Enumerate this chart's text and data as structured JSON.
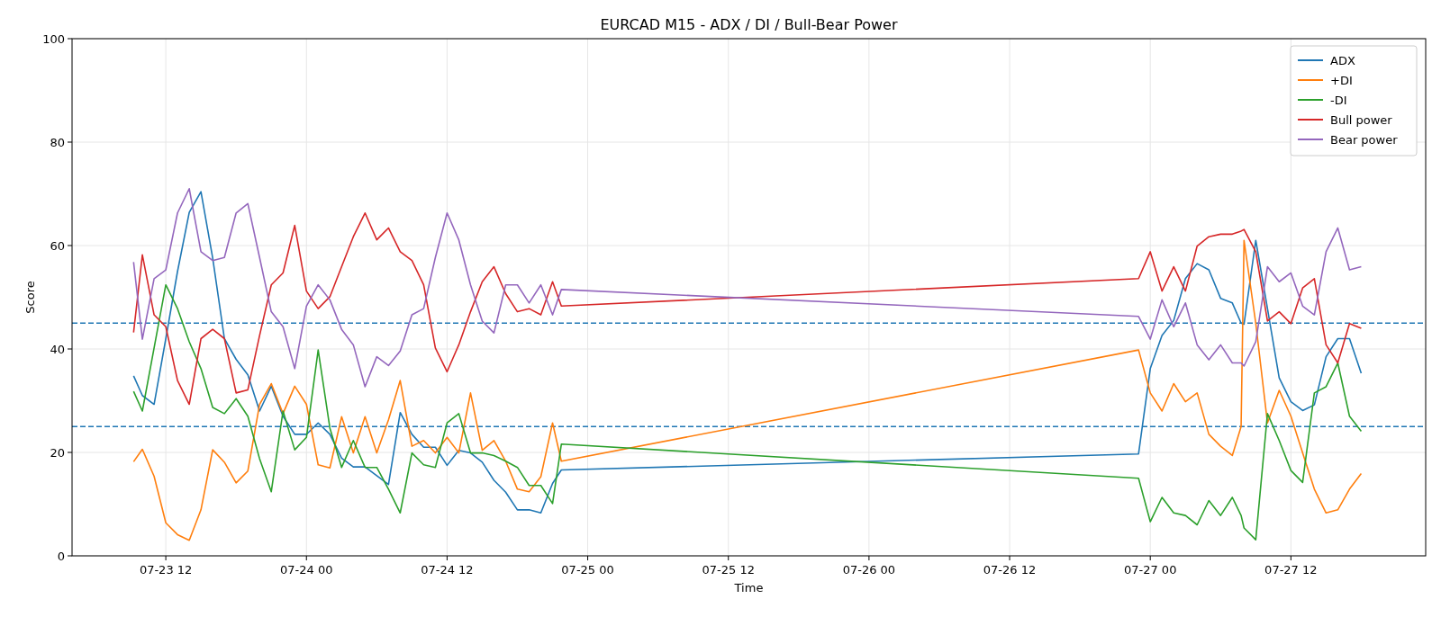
{
  "chart_data": {
    "type": "line",
    "title": "EURCAD M15 - ADX / DI / Bull-Bear Power",
    "xlabel": "Time",
    "ylabel": "Score",
    "x": [
      "--07-23T09:15",
      "--07-23T10:00",
      "--07-23T11:00",
      "--07-23T12:00",
      "--07-23T13:00",
      "--07-23T14:00",
      "--07-23T15:00",
      "--07-23T16:00",
      "--07-23T17:00",
      "--07-23T18:00",
      "--07-23T19:00",
      "--07-23T20:00",
      "--07-23T21:00",
      "--07-23T22:00",
      "--07-23T23:00",
      "--07-24T00:00",
      "--07-24T01:00",
      "--07-24T02:00",
      "--07-24T03:00",
      "--07-24T04:00",
      "--07-24T05:00",
      "--07-24T06:00",
      "--07-24T07:00",
      "--07-24T08:00",
      "--07-24T09:00",
      "--07-24T10:00",
      "--07-24T11:00",
      "--07-24T12:00",
      "--07-24T13:00",
      "--07-24T14:00",
      "--07-24T15:00",
      "--07-24T16:00",
      "--07-24T17:00",
      "--07-24T18:00",
      "--07-24T19:00",
      "--07-24T20:00",
      "--07-24T21:00",
      "--07-24T21:45",
      "--07-26T23:00",
      "--07-27T00:00",
      "--07-27T01:00",
      "--07-27T02:00",
      "--07-27T03:00",
      "--07-27T04:00",
      "--07-27T05:00",
      "--07-27T06:00",
      "--07-27T07:00",
      "--07-27T07:45",
      "--07-27T08:00",
      "--07-27T09:00",
      "--07-27T10:00",
      "--07-27T11:00",
      "--07-27T12:00",
      "--07-27T13:00",
      "--07-27T14:00",
      "--07-27T15:00",
      "--07-27T16:00",
      "--07-27T17:00",
      "--07-27T18:00"
    ],
    "series": [
      {
        "name": "ADX",
        "color": "#1f77b4",
        "values": [
          34.8,
          31,
          29.3,
          42,
          55,
          66.4,
          70.4,
          57.6,
          42,
          38,
          35,
          28,
          32.8,
          27,
          23.5,
          23.5,
          25.7,
          23.5,
          18.9,
          17.2,
          17.2,
          15.5,
          13.8,
          27.7,
          23.5,
          21,
          21,
          17.5,
          20.4,
          19.9,
          18.1,
          14.6,
          12.3,
          8.9,
          8.9,
          8.3,
          14,
          16.6,
          19.7,
          36.2,
          42.6,
          45.5,
          53.6,
          56.5,
          55.3,
          49.8,
          48.9,
          45,
          44.8,
          61,
          47.8,
          34.4,
          29.8,
          28.1,
          29.2,
          38.5,
          42,
          42,
          35.3
        ]
      },
      {
        "name": "+DI",
        "color": "#ff7f0e",
        "values": [
          18.2,
          20.6,
          15.4,
          6.4,
          4.1,
          3,
          8.9,
          20.5,
          18.1,
          14.1,
          16.4,
          29.3,
          33.3,
          27.5,
          32.8,
          29.3,
          17.6,
          17,
          26.9,
          19.9,
          26.9,
          19.9,
          26.3,
          33.9,
          21.2,
          22.3,
          19.9,
          22.9,
          19.9,
          31.5,
          20.4,
          22.3,
          18.3,
          12.9,
          12.4,
          15.3,
          25.7,
          18.3,
          39.8,
          31.5,
          28,
          33.3,
          29.8,
          31.5,
          23.5,
          21.2,
          19.4,
          25,
          61,
          45,
          25.7,
          32,
          27,
          19.9,
          12.9,
          8.3,
          8.9,
          12.9,
          15.9
        ]
      },
      {
        "name": "-DI",
        "color": "#2ca02c",
        "values": [
          31.8,
          28,
          40.2,
          52.4,
          47.8,
          41.4,
          36.2,
          28.7,
          27.5,
          30.4,
          27,
          18.8,
          12.4,
          28,
          20.5,
          22.9,
          39.8,
          24.7,
          17.1,
          22.3,
          17.1,
          17.1,
          12.9,
          8.3,
          19.9,
          17.6,
          17.1,
          25.7,
          27.5,
          19.9,
          19.9,
          19.4,
          18.3,
          17.1,
          13.6,
          13.6,
          10.1,
          21.6,
          15,
          6.6,
          11.3,
          8.3,
          7.8,
          6,
          10.7,
          7.8,
          11.3,
          7.8,
          5.4,
          3.1,
          27.5,
          22.3,
          16.5,
          14.2,
          31.5,
          32.7,
          37.3,
          27,
          24.1
        ]
      },
      {
        "name": "Bull power",
        "color": "#d62728",
        "values": [
          43.2,
          58.2,
          46.6,
          44.3,
          33.9,
          29.3,
          42,
          43.8,
          42,
          31.5,
          32.1,
          42.6,
          52.4,
          54.7,
          63.9,
          51.2,
          47.8,
          50.1,
          55.9,
          61.7,
          66.3,
          61.1,
          63.4,
          58.8,
          57.1,
          52.4,
          40.2,
          35.6,
          40.8,
          47.2,
          53,
          55.9,
          50.7,
          47.2,
          47.8,
          46.6,
          53,
          48.3,
          53.6,
          58.8,
          51.2,
          55.9,
          51.2,
          59.9,
          61.7,
          62.2,
          62.2,
          62.8,
          63.1,
          58.8,
          45.4,
          47.2,
          44.9,
          51.8,
          53.6,
          40.8,
          37.3,
          44.9,
          44
        ]
      },
      {
        "name": "Bear power",
        "color": "#9467bd",
        "values": [
          56.8,
          41.9,
          53.6,
          55.3,
          66.3,
          71,
          58.8,
          57.1,
          57.7,
          66.3,
          68.1,
          57.7,
          47.2,
          44.3,
          36.2,
          48.3,
          52.4,
          49.5,
          43.8,
          40.8,
          32.7,
          38.5,
          36.8,
          39.6,
          46.6,
          47.8,
          57.7,
          66.3,
          61.1,
          52.4,
          45.4,
          43.1,
          52.4,
          52.4,
          48.9,
          52.4,
          46.6,
          51.5,
          46.3,
          41.9,
          49.5,
          44.3,
          48.9,
          40.8,
          37.9,
          40.8,
          37.3,
          37.3,
          36.7,
          41.4,
          55.9,
          53,
          54.7,
          48.3,
          46.6,
          58.8,
          63.4,
          55.3,
          55.9
        ]
      }
    ],
    "xlim": [
      "--07-23T04:00",
      "--07-27T23:30"
    ],
    "xticks": [
      {
        "value": "--07-23T12:00",
        "label": "07-23 12"
      },
      {
        "value": "--07-24T00:00",
        "label": "07-24 00"
      },
      {
        "value": "--07-24T12:00",
        "label": "07-24 12"
      },
      {
        "value": "--07-25T00:00",
        "label": "07-25 00"
      },
      {
        "value": "--07-25T12:00",
        "label": "07-25 12"
      },
      {
        "value": "--07-26T00:00",
        "label": "07-26 00"
      },
      {
        "value": "--07-26T12:00",
        "label": "07-26 12"
      },
      {
        "value": "--07-27T00:00",
        "label": "07-27 00"
      },
      {
        "value": "--07-27T12:00",
        "label": "07-27 12"
      }
    ],
    "ylim": [
      0,
      100
    ],
    "yticks": [
      0,
      20,
      40,
      60,
      80,
      100
    ],
    "ref_lines": [
      {
        "axis": "y",
        "value": 25,
        "color": "#1f77b4",
        "line_style": "dashed"
      },
      {
        "axis": "y",
        "value": 45,
        "color": "#1f77b4",
        "line_style": "dashed"
      }
    ],
    "grid": true,
    "legend": "top right",
    "marker": "none",
    "line_style": "solid"
  }
}
